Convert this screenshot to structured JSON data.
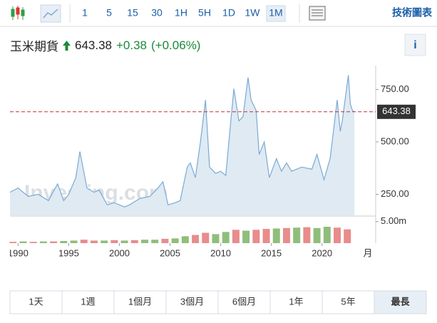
{
  "toolbar": {
    "intervals": [
      "1",
      "5",
      "15",
      "30",
      "1H",
      "5H",
      "1D",
      "1W",
      "1M"
    ],
    "active_interval": 8,
    "link": "技術圖表"
  },
  "header": {
    "title": "玉米期貨",
    "change": "+0.38",
    "change_pct": "(+0.06%)",
    "info_button": "i"
  },
  "chart_data": {
    "type": "area",
    "watermark": "Investing.com",
    "last": 643.38,
    "xlim": [
      1989.2,
      2025.3
    ],
    "xticks": [
      1990,
      1995,
      2000,
      2005,
      2010,
      2015,
      2020
    ],
    "x_unit_label": "月",
    "ylim": [
      150,
      850
    ],
    "yticks": [
      {
        "value": 250,
        "label": "250.00"
      },
      {
        "value": 500,
        "label": "500.00"
      },
      {
        "value": 750,
        "label": "750.00"
      }
    ],
    "y2lim": [
      0,
      5.96
    ],
    "y2ticks": [
      {
        "value": 5,
        "label": "5.00m"
      }
    ],
    "series": [
      {
        "type": "area",
        "color": "#7aaad4",
        "fill": "#dfeaf3",
        "x": [
          1989.2,
          1990,
          1991,
          1992,
          1993,
          1993.9,
          1994.5,
          1995,
          1995.7,
          1996.1,
          1996.8,
          1997.5,
          1998,
          1998.8,
          1999.5,
          2000.5,
          2001,
          2002,
          2003,
          2003.8,
          2004.3,
          2004.8,
          2005.5,
          2006,
          2006.7,
          2007,
          2007.5,
          2008,
          2008.5,
          2008.9,
          2009.5,
          2010,
          2010.5,
          2011,
          2011.3,
          2011.8,
          2012.2,
          2012.7,
          2013,
          2013.5,
          2013.8,
          2014.3,
          2014.8,
          2015.5,
          2016,
          2016.5,
          2017,
          2018,
          2019,
          2019.5,
          2020.2,
          2020.8,
          2021.5,
          2021.8,
          2022,
          2022.6,
          2022.8,
          2023,
          2023.2
        ],
        "values": [
          260,
          280,
          240,
          250,
          220,
          300,
          220,
          250,
          330,
          454,
          280,
          260,
          270,
          200,
          210,
          190,
          200,
          230,
          240,
          280,
          310,
          200,
          210,
          220,
          380,
          400,
          330,
          500,
          700,
          380,
          350,
          360,
          340,
          600,
          753,
          600,
          620,
          807,
          700,
          650,
          440,
          500,
          330,
          420,
          360,
          400,
          360,
          380,
          370,
          440,
          320,
          420,
          700,
          550,
          600,
          818,
          680,
          650,
          643.38
        ]
      },
      {
        "type": "bar",
        "axis": "y2",
        "x": [
          1989.5,
          1990.5,
          1991.5,
          1992.5,
          1993.5,
          1994.5,
          1995.5,
          1996.5,
          1997.5,
          1998.5,
          1999.5,
          2000.5,
          2001.5,
          2002.5,
          2003.5,
          2004.5,
          2005.5,
          2006.5,
          2007.5,
          2008.5,
          2009.5,
          2010.5,
          2011.5,
          2012.5,
          2013.5,
          2014.5,
          2015.5,
          2016.5,
          2017.5,
          2018.5,
          2019.5,
          2020.5,
          2021.5,
          2022.5
        ],
        "values": [
          0.3,
          0.4,
          0.3,
          0.4,
          0.4,
          0.5,
          0.6,
          0.8,
          0.6,
          0.6,
          0.7,
          0.6,
          0.7,
          0.8,
          0.8,
          1.0,
          1.1,
          1.6,
          1.9,
          2.4,
          2.1,
          2.6,
          3.1,
          2.9,
          3.1,
          3.3,
          3.4,
          3.5,
          3.6,
          3.7,
          3.5,
          3.8,
          3.6,
          3.2
        ],
        "colors": [
          "#e06666",
          "#6aa84f",
          "#e06666",
          "#6aa84f",
          "#e06666",
          "#6aa84f",
          "#6aa84f",
          "#e06666",
          "#e06666",
          "#6aa84f",
          "#e06666",
          "#6aa84f",
          "#e06666",
          "#6aa84f",
          "#6aa84f",
          "#e06666",
          "#6aa84f",
          "#6aa84f",
          "#e06666",
          "#e06666",
          "#6aa84f",
          "#6aa84f",
          "#e06666",
          "#6aa84f",
          "#e06666",
          "#e06666",
          "#6aa84f",
          "#e06666",
          "#6aa84f",
          "#e06666",
          "#6aa84f",
          "#6aa84f",
          "#e06666",
          "#e06666"
        ]
      }
    ]
  },
  "ranges": {
    "labels": [
      "1天",
      "1週",
      "1個月",
      "3個月",
      "6個月",
      "1年",
      "5年",
      "最長"
    ],
    "active": 7
  }
}
